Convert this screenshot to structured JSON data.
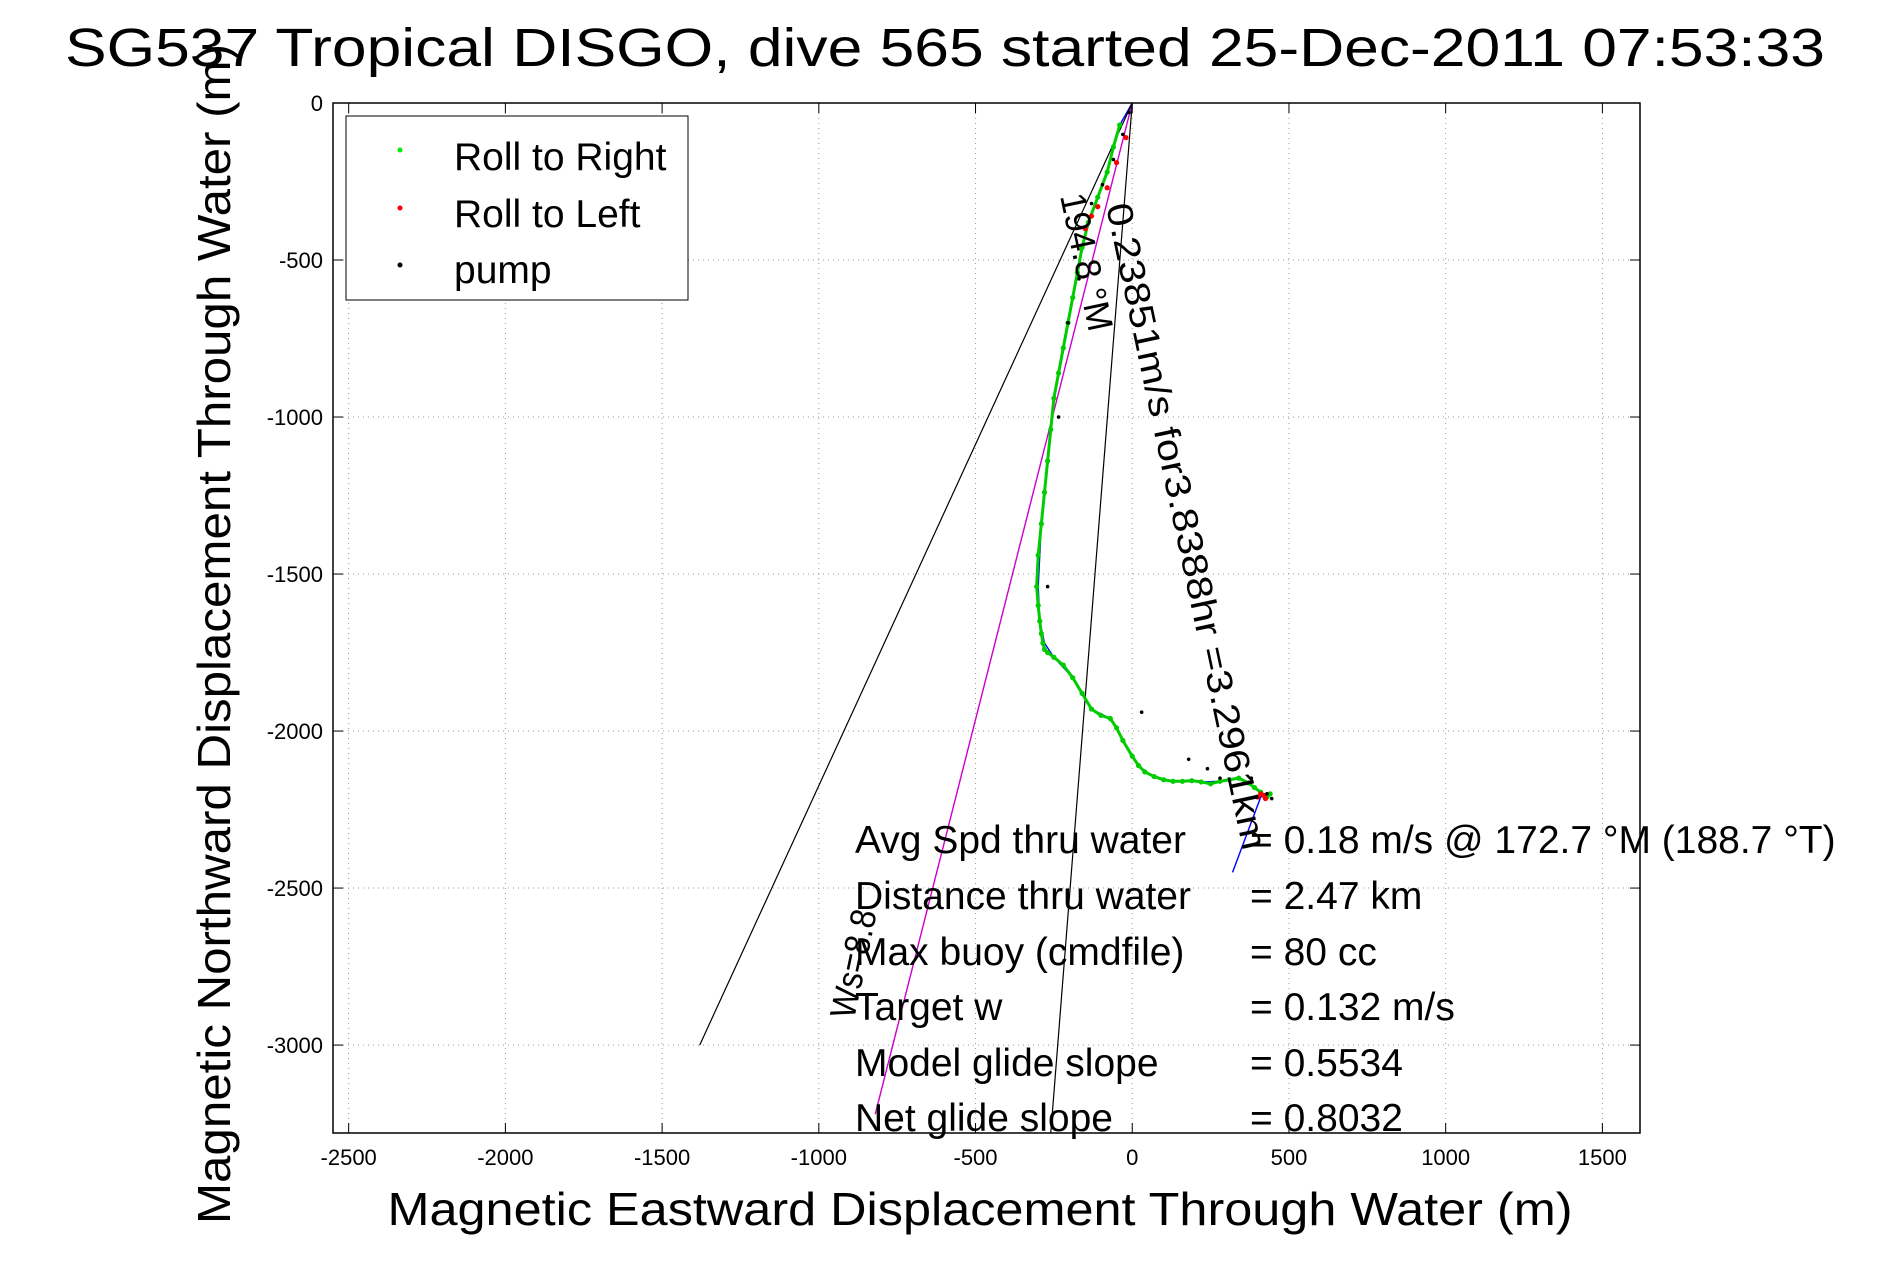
{
  "chart_data": {
    "type": "scatter",
    "title": "SG537 Tropical DISGO, dive 565 started 25-Dec-2011 07:53:33",
    "xlabel": "Magnetic Eastward Displacement Through Water (m)",
    "ylabel": "Magnetic Northward Displacement Through Water (m)",
    "xlim": [
      -2550,
      1620
    ],
    "ylim": [
      -3280,
      0
    ],
    "xticks": [
      -2500,
      -2000,
      -1500,
      -1000,
      -500,
      0,
      500,
      1000,
      1500
    ],
    "yticks": [
      0,
      -500,
      -1000,
      -1500,
      -2000,
      -2500,
      -3000
    ],
    "grid": true,
    "legend_position": "top-left",
    "legend": [
      {
        "label": "Roll to Right",
        "color": "#00ee00"
      },
      {
        "label": "Roll to Left",
        "color": "#ff0000"
      },
      {
        "label": "pump",
        "color": "#000000"
      }
    ],
    "series": [
      {
        "name": "Roll to Right",
        "color": "#00cc00",
        "x": [
          -40,
          -60,
          -80,
          -110,
          -140,
          -160,
          -175,
          -190,
          -205,
          -220,
          -235,
          -250,
          -260,
          -270,
          -280,
          -290,
          -300,
          -305,
          -300,
          -295,
          -290,
          -285,
          -280,
          -270,
          -250,
          -220,
          -190,
          -160,
          -130,
          -100,
          -70,
          -50,
          -30,
          0,
          20,
          40,
          70,
          100,
          130,
          160,
          190,
          220,
          250,
          280,
          310,
          340,
          370,
          390,
          410,
          420,
          430,
          440
        ],
        "y": [
          -70,
          -140,
          -220,
          -300,
          -380,
          -460,
          -540,
          -620,
          -700,
          -780,
          -860,
          -940,
          -1040,
          -1140,
          -1240,
          -1340,
          -1440,
          -1540,
          -1600,
          -1650,
          -1690,
          -1720,
          -1740,
          -1750,
          -1765,
          -1790,
          -1830,
          -1880,
          -1930,
          -1950,
          -1960,
          -1990,
          -2030,
          -2080,
          -2110,
          -2130,
          -2145,
          -2155,
          -2160,
          -2160,
          -2158,
          -2162,
          -2168,
          -2160,
          -2155,
          -2150,
          -2165,
          -2180,
          -2195,
          -2205,
          -2210,
          -2200
        ]
      },
      {
        "name": "Roll to Left",
        "color": "#ff0000",
        "x": [
          -20,
          -50,
          -80,
          -110,
          -130,
          -150,
          400,
          410,
          420,
          425
        ],
        "y": [
          -110,
          -190,
          -270,
          -330,
          -360,
          -400,
          -2210,
          -2200,
          -2205,
          -2215
        ]
      },
      {
        "name": "pump",
        "color": "#000000",
        "x": [
          -10,
          -30,
          -60,
          -95,
          -130,
          -170,
          -205,
          -235,
          -270,
          30,
          180,
          240,
          280,
          380,
          430,
          445
        ],
        "y": [
          -30,
          -100,
          -180,
          -260,
          -320,
          -560,
          -700,
          -1000,
          -1540,
          -1940,
          -2090,
          -2120,
          -2150,
          -2150,
          -2200,
          -2215
        ]
      }
    ],
    "lines": [
      {
        "name": "track",
        "color": "#0000ff",
        "x": [
          0,
          -40,
          -60,
          -80,
          -110,
          -140,
          -160,
          -190,
          -220,
          -250,
          -270,
          -290,
          -300,
          -295,
          -280,
          -250,
          -190,
          -130,
          -70,
          -30,
          0,
          40,
          100,
          160,
          220,
          280,
          340,
          390,
          420,
          440,
          410,
          320
        ],
        "y": [
          0,
          -70,
          -140,
          -220,
          -300,
          -380,
          -460,
          -620,
          -780,
          -940,
          -1140,
          -1340,
          -1540,
          -1650,
          -1720,
          -1765,
          -1830,
          -1930,
          -1960,
          -2030,
          -2080,
          -2130,
          -2155,
          -2160,
          -2162,
          -2160,
          -2150,
          -2180,
          -2205,
          -2200,
          -2210,
          -2450
        ]
      },
      {
        "name": "net displacement",
        "color": "#cc00cc",
        "x": [
          0,
          -820
        ],
        "y": [
          0,
          -3220
        ]
      },
      {
        "name": "cone left",
        "color": "#000000",
        "x": [
          0,
          -1380
        ],
        "y": [
          0,
          -3000
        ]
      },
      {
        "name": "cone right",
        "color": "#000000",
        "x": [
          0,
          -260
        ],
        "y": [
          0,
          -3280
        ]
      }
    ],
    "annotations": {
      "vector_label_1": "0.23851m/s for3.8388hr =3.2961km",
      "vector_label_2": "194.8 °M",
      "vector_label_3": "Ws=8.8",
      "stats": [
        {
          "label": "Avg Spd thru water",
          "value": "=  0.18 m/s @ 172.7 °M (188.7 °T)"
        },
        {
          "label": "Distance thru water",
          "value": "=  2.47 km"
        },
        {
          "label": "Max buoy (cmdfile)",
          "value": "= 80 cc"
        },
        {
          "label": "Target w",
          "value": "= 0.132 m/s"
        },
        {
          "label": "Model glide slope",
          "value": "= 0.5534"
        },
        {
          "label": "Net glide slope",
          "value": "= 0.8032"
        }
      ]
    }
  }
}
